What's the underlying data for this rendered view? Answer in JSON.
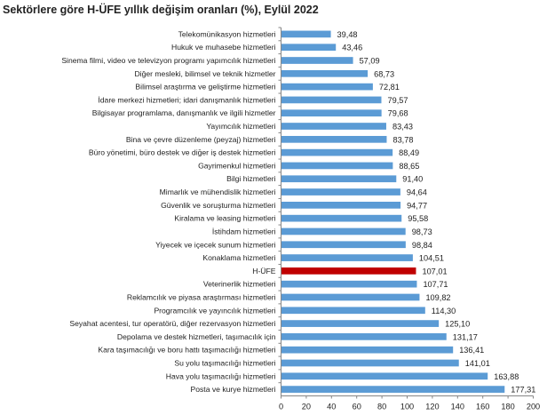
{
  "chart_data": {
    "type": "bar",
    "orientation": "horizontal",
    "title": "Sektörlere göre H-ÜFE yıllık değişim oranları (%), Eylül 2022",
    "xlabel": "",
    "ylabel": "",
    "xlim": [
      0,
      200
    ],
    "xticks": [
      0,
      20,
      40,
      60,
      80,
      100,
      120,
      140,
      160,
      180,
      200
    ],
    "grid": false,
    "legend": "none",
    "colors": {
      "default": "#5b9bd5",
      "highlight": "#c00000"
    },
    "categories": [
      "Telekomünikasyon hizmetleri",
      "Hukuk ve muhasebe hizmetleri",
      "Sinema filmi, video ve televizyon programı yapımcılık hizmetleri",
      "Diğer mesleki, bilimsel ve teknik hizmetler",
      "Bilimsel araştırma ve geliştirme hizmetleri",
      "İdare merkezi hizmetleri; idari danışmanlık hizmetleri",
      "Bilgisayar programlama, danışmanlık ve ilgili hizmetler",
      "Yayımcılık hizmetleri",
      "Bina ve çevre düzenleme (peyzaj) hizmetleri",
      "Büro yönetimi, büro destek ve diğer iş destek hizmetleri",
      "Gayrimenkul hizmetleri",
      "Bilgi hizmetleri",
      "Mimarlık ve mühendislik hizmetleri",
      "Güvenlik ve soruşturma hizmetleri",
      "Kiralama ve leasing hizmetleri",
      "İstihdam hizmetleri",
      "Yiyecek ve içecek sunum hizmetleri",
      "Konaklama hizmetleri",
      "H-ÜFE",
      "Veterinerlik hizmetleri",
      "Reklamcılık ve piyasa araştırması hizmetleri",
      "Programcılık ve yayıncılık hizmetleri",
      "Seyahat acentesi, tur operatörü, diğer rezervasyon hizmetleri",
      "Depolama ve destek hizmetleri, taşımacılık için",
      "Kara taşımacılığı ve boru hattı taşımacılığı hizmetleri",
      "Su yolu taşımacılığı hizmetleri",
      "Hava yolu taşımacılığı hizmetleri",
      "Posta ve kurye hizmetleri"
    ],
    "values": [
      39.48,
      43.46,
      57.09,
      68.73,
      72.81,
      79.57,
      79.68,
      83.43,
      83.78,
      88.49,
      88.65,
      91.4,
      94.64,
      94.77,
      95.58,
      98.73,
      98.84,
      104.51,
      107.01,
      107.71,
      109.82,
      114.3,
      125.1,
      131.17,
      136.41,
      141.01,
      163.88,
      177.31
    ],
    "value_labels": [
      "39,48",
      "43,46",
      "57,09",
      "68,73",
      "72,81",
      "79,57",
      "79,68",
      "83,43",
      "83,78",
      "88,49",
      "88,65",
      "91,40",
      "94,64",
      "94,77",
      "95,58",
      "98,73",
      "98,84",
      "104,51",
      "107,01",
      "107,71",
      "109,82",
      "114,30",
      "125,10",
      "131,17",
      "136,41",
      "141,01",
      "163,88",
      "177,31"
    ],
    "highlight_index": 18
  }
}
